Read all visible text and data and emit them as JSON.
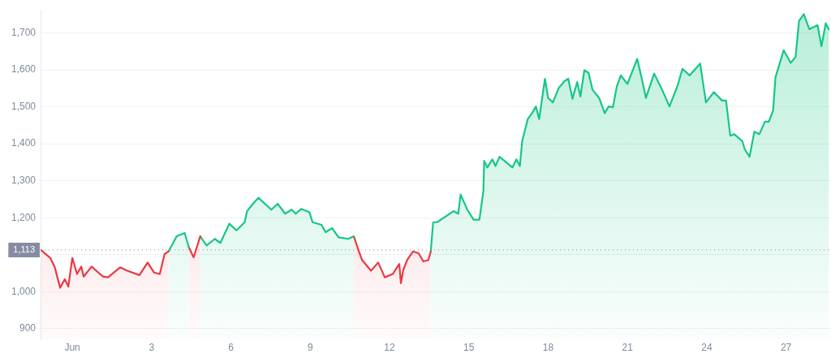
{
  "chart_data": {
    "type": "area",
    "grid": "y",
    "xlim": [
      -1.2,
      28.7
    ],
    "ylim": [
      870,
      1760
    ],
    "xticks": [
      {
        "value": 0,
        "label": "Jun"
      },
      3,
      6,
      9,
      12,
      15,
      18,
      21,
      24,
      27
    ],
    "yticks": [
      {
        "value": 900,
        "label": "900"
      },
      {
        "value": 1000,
        "label": "1,000"
      },
      {
        "value": 1100,
        "label": null
      },
      {
        "value": 1200,
        "label": "1,200"
      },
      {
        "value": 1300,
        "label": "1,300"
      },
      {
        "value": 1400,
        "label": "1,400"
      },
      {
        "value": 1500,
        "label": "1,500"
      },
      {
        "value": 1600,
        "label": "1,600"
      },
      {
        "value": 1700,
        "label": "1,700"
      }
    ],
    "ref_lines": [
      {
        "axis": "y",
        "value": 1113,
        "label": "1,113",
        "color": "#858ca2",
        "line_style": "dotted"
      }
    ],
    "series": [
      {
        "color": "#ea3943",
        "x": [
          -1.19,
          -0.83,
          -0.67,
          -0.46,
          -0.28,
          -0.15,
          0,
          0.18,
          0.34,
          0.43,
          0.73,
          1.16,
          1.35,
          1.81,
          2.08,
          2.54,
          2.85,
          3.09,
          3.31,
          3.49,
          3.64
        ],
        "values": [
          1113,
          1091,
          1068,
          1011,
          1034,
          1014,
          1091,
          1048,
          1068,
          1041,
          1068,
          1041,
          1039,
          1066,
          1057,
          1045,
          1079,
          1052,
          1048,
          1102,
          1109
        ]
      },
      {
        "color": "#16c784",
        "x": [
          3.64,
          3.95,
          4.25,
          4.41
        ],
        "values": [
          1109,
          1150,
          1159,
          1120
        ]
      },
      {
        "color": "#ea3943",
        "x": [
          4.41,
          4.59,
          4.84
        ],
        "values": [
          1120,
          1093,
          1150
        ]
      },
      {
        "color": "#16c784",
        "x": [
          4.84,
          5.08,
          5.39,
          5.6,
          5.94,
          6.21,
          6.52,
          6.61,
          6.86,
          7.04,
          7.53,
          7.77,
          8.05,
          8.3,
          8.45,
          8.66,
          8.97,
          9.09,
          9.43,
          9.58,
          9.83,
          10.07,
          10.44,
          10.65
        ],
        "values": [
          1150,
          1125,
          1143,
          1132,
          1184,
          1166,
          1188,
          1218,
          1240,
          1254,
          1222,
          1238,
          1211,
          1222,
          1211,
          1224,
          1215,
          1188,
          1181,
          1161,
          1172,
          1147,
          1143,
          1150
        ]
      },
      {
        "color": "#ea3943",
        "x": [
          10.65,
          10.84,
          10.96,
          11.3,
          11.57,
          11.82,
          12.12,
          12.37,
          12.43,
          12.52,
          12.67,
          12.89,
          13.1,
          13.28,
          13.47,
          13.56
        ],
        "values": [
          1150,
          1109,
          1086,
          1057,
          1079,
          1039,
          1048,
          1075,
          1023,
          1059,
          1086,
          1109,
          1104,
          1082,
          1086,
          1109
        ]
      },
      {
        "color": "#16c784",
        "x": [
          13.56,
          13.65,
          13.8,
          14.42,
          14.6,
          14.69,
          14.94,
          15.18,
          15.4,
          15.55,
          15.58,
          15.7,
          15.89,
          16.01,
          16.16,
          16.35,
          16.65,
          16.8,
          16.93,
          17.02,
          17.23,
          17.39,
          17.54,
          17.66,
          17.88,
          18,
          18.18,
          18.4,
          18.61,
          18.76,
          18.92,
          19.1,
          19.22,
          19.37,
          19.53,
          19.68,
          19.93,
          20.14,
          20.29,
          20.45,
          20.6,
          20.75,
          21,
          21.37,
          21.55,
          21.7,
          22.01,
          22.28,
          22.59,
          22.9,
          23.08,
          23.35,
          23.75,
          23.97,
          24.27,
          24.58,
          24.73,
          24.89,
          25.04,
          25.34,
          25.44,
          25.62,
          25.8,
          25.99,
          26.2,
          26.35,
          26.51,
          26.6,
          26.91,
          27.18,
          27.36,
          27.49,
          27.67,
          27.88,
          28.19,
          28.34,
          28.5,
          28.62
        ],
        "values": [
          1109,
          1188,
          1188,
          1218,
          1211,
          1263,
          1222,
          1195,
          1195,
          1272,
          1354,
          1336,
          1358,
          1340,
          1365,
          1354,
          1336,
          1358,
          1340,
          1408,
          1467,
          1483,
          1501,
          1467,
          1576,
          1524,
          1512,
          1551,
          1569,
          1576,
          1522,
          1567,
          1528,
          1599,
          1592,
          1546,
          1524,
          1483,
          1501,
          1499,
          1556,
          1585,
          1562,
          1630,
          1574,
          1524,
          1590,
          1551,
          1501,
          1558,
          1603,
          1585,
          1617,
          1512,
          1540,
          1517,
          1517,
          1422,
          1426,
          1408,
          1385,
          1365,
          1433,
          1426,
          1460,
          1460,
          1490,
          1580,
          1653,
          1619,
          1635,
          1732,
          1751,
          1710,
          1721,
          1664,
          1726,
          1710
        ]
      }
    ]
  }
}
